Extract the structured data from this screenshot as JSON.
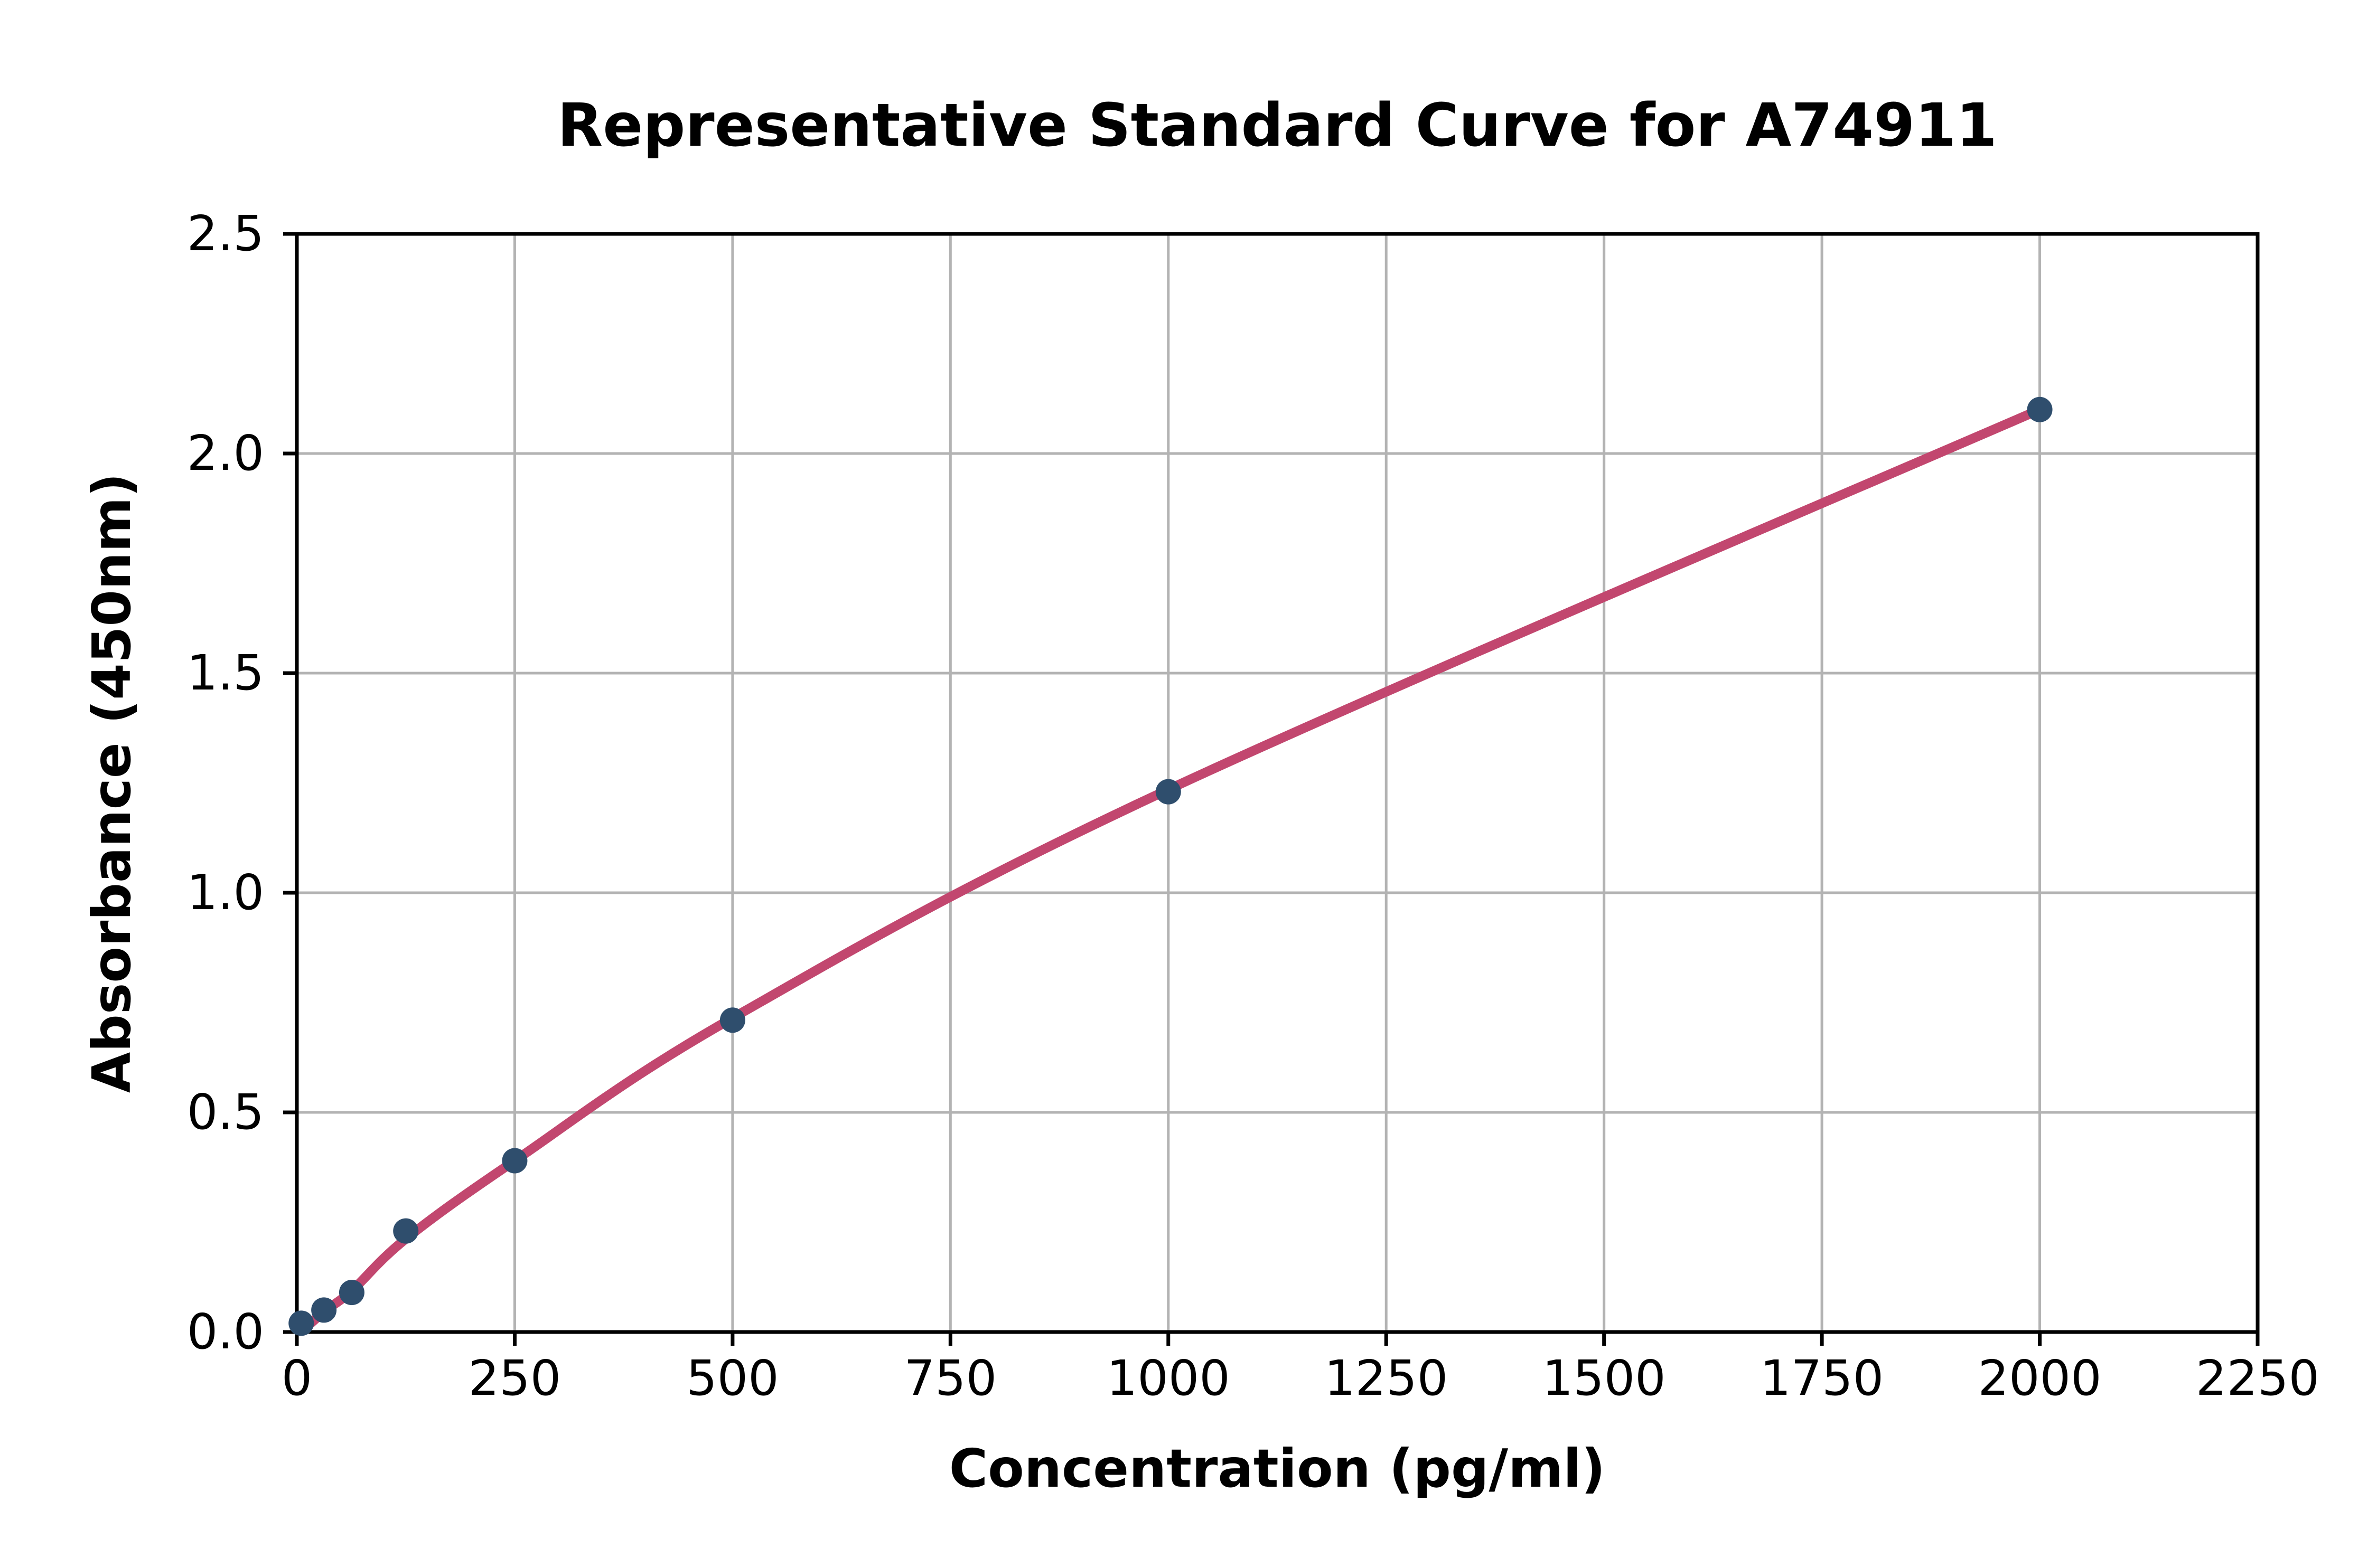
{
  "chart_data": {
    "type": "scatter",
    "title": "Representative Standard Curve for A74911",
    "xlabel": "Concentration (pg/ml)",
    "ylabel": "Absorbance (450nm)",
    "xlim": [
      0,
      2250
    ],
    "ylim": [
      0.0,
      2.5
    ],
    "x_ticks": [
      "0",
      "250",
      "500",
      "750",
      "1000",
      "1250",
      "1500",
      "1750",
      "2000",
      "2250"
    ],
    "y_ticks": [
      "0.0",
      "0.5",
      "1.0",
      "1.5",
      "2.0",
      "2.5"
    ],
    "grid": "on",
    "legend": "none",
    "points": [
      {
        "x": 5,
        "y": 0.02
      },
      {
        "x": 31,
        "y": 0.05
      },
      {
        "x": 63,
        "y": 0.09
      },
      {
        "x": 125,
        "y": 0.23
      },
      {
        "x": 250,
        "y": 0.39
      },
      {
        "x": 500,
        "y": 0.71
      },
      {
        "x": 1000,
        "y": 1.23
      },
      {
        "x": 2000,
        "y": 2.1
      }
    ],
    "trend_line": [
      [
        5,
        0.0
      ],
      [
        31,
        0.046
      ],
      [
        63,
        0.094
      ],
      [
        125,
        0.212
      ],
      [
        250,
        0.39
      ],
      [
        500,
        0.715
      ],
      [
        1000,
        1.235
      ],
      [
        2000,
        2.1
      ]
    ],
    "colors": {
      "marker": "#2f4e6d",
      "line": "#c2476f",
      "grid": "#b3b3b3",
      "axis": "#000000",
      "background": "#ffffff"
    }
  }
}
